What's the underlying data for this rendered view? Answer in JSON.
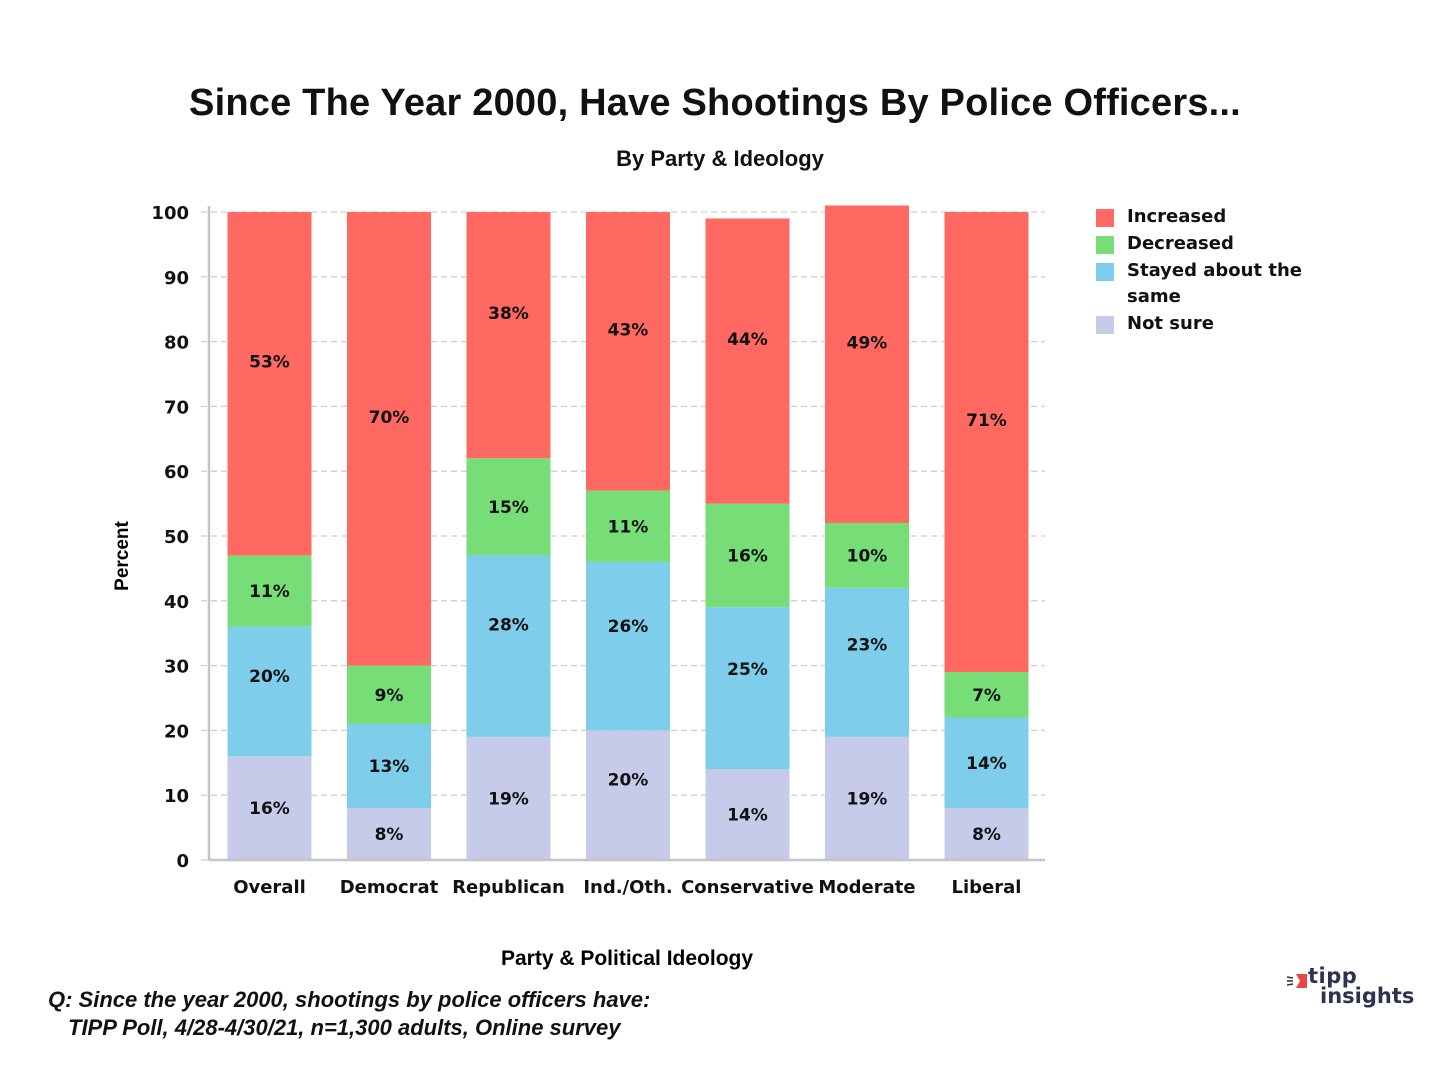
{
  "chart_data": {
    "type": "bar",
    "stacked": true,
    "title": "Since The Year 2000, Have Shootings By Police Officers...",
    "subtitle": "By Party & Ideology",
    "xlabel": "Party & Political Ideology",
    "ylabel": "Percent",
    "ylim": [
      0,
      100
    ],
    "yticks": [
      0,
      10,
      20,
      30,
      40,
      50,
      60,
      70,
      80,
      90,
      100
    ],
    "grid": true,
    "legend_position": "top-right",
    "categories": [
      "Overall",
      "Democrat",
      "Republican",
      "Ind./Oth.",
      "Conservative",
      "Moderate",
      "Liberal"
    ],
    "series": [
      {
        "name": "Not sure",
        "color": "#c5cbe8",
        "values": [
          16,
          8,
          19,
          20,
          14,
          19,
          8
        ]
      },
      {
        "name": "Stayed about the same",
        "color": "#7ecdea",
        "values": [
          20,
          13,
          28,
          26,
          25,
          23,
          14
        ]
      },
      {
        "name": "Decreased",
        "color": "#77dd77",
        "values": [
          11,
          9,
          15,
          11,
          16,
          10,
          7
        ]
      },
      {
        "name": "Increased",
        "color": "#ff6961",
        "values": [
          53,
          70,
          38,
          43,
          44,
          49,
          71
        ]
      }
    ],
    "legend_order": [
      "Increased",
      "Decreased",
      "Stayed about the same",
      "Not sure"
    ],
    "value_label_suffix": "%"
  },
  "footnote": {
    "line1": "Q:  Since the year 2000, shootings by police officers have:",
    "line2": "TIPP Poll, 4/28-4/30/21, n=1,300 adults, Online survey"
  },
  "logo": {
    "line1": "tipp",
    "line2": "insights",
    "accent": "#e8483f",
    "text_color": "#2d3250"
  }
}
